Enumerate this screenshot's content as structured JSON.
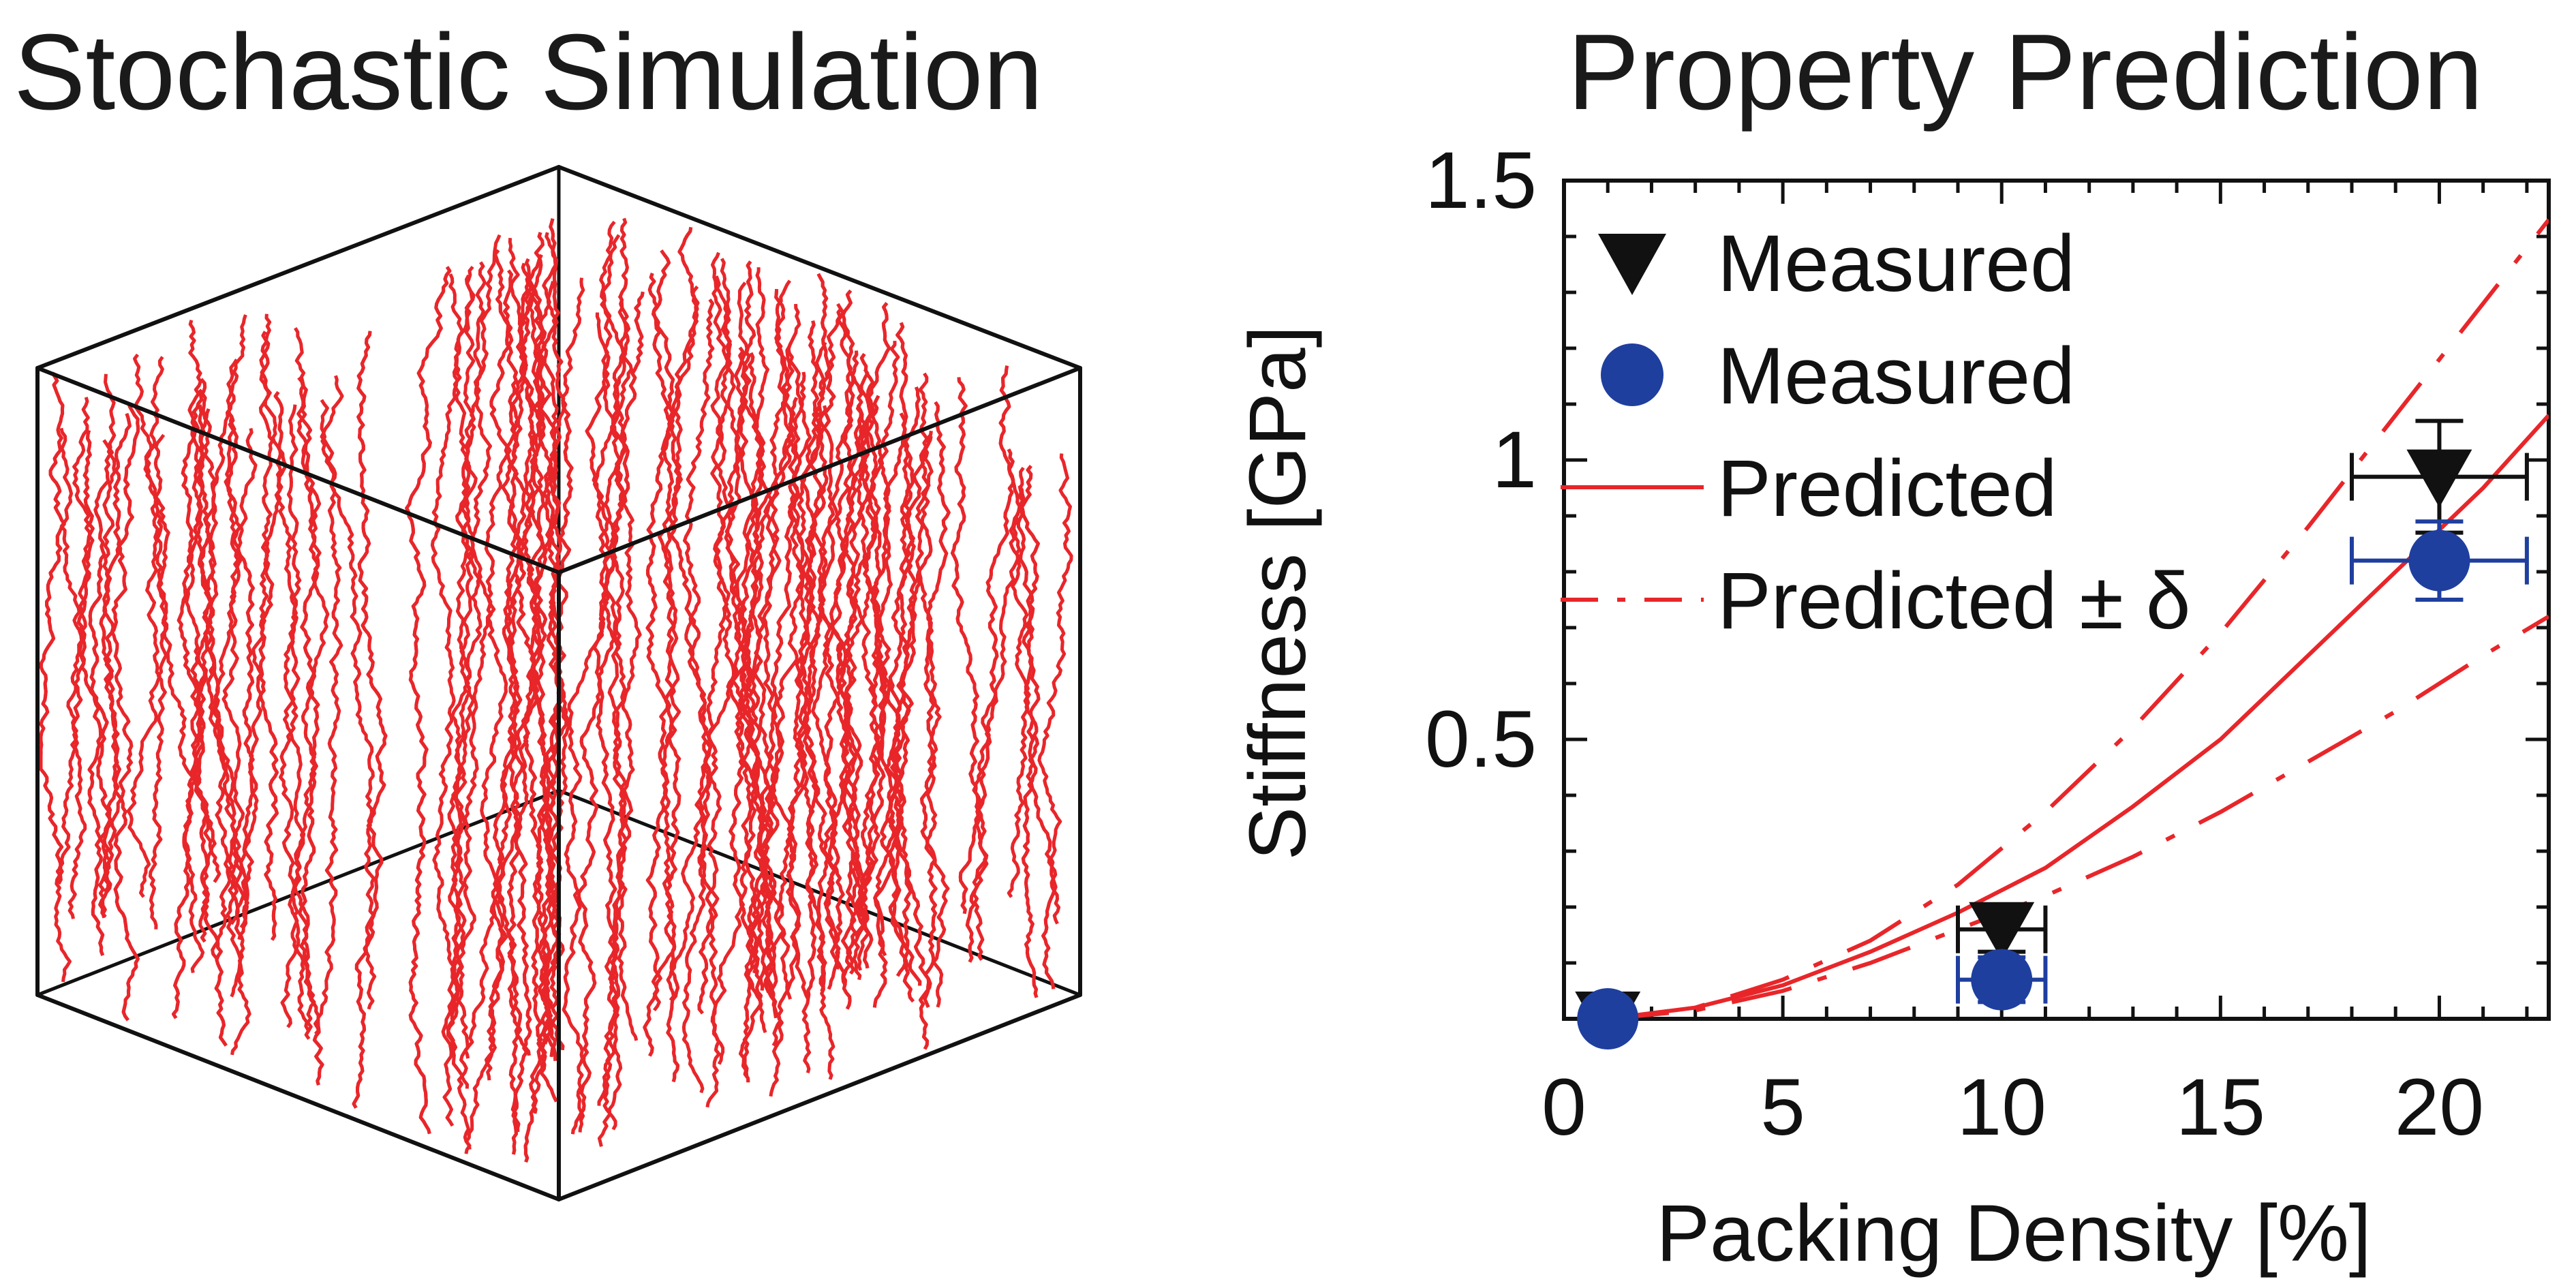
{
  "left_panel": {
    "title": "Stochastic Simulation",
    "fiber_color": "#e8262a",
    "edge_color": "#111111"
  },
  "chart_data": {
    "type": "line",
    "title": "Property Prediction",
    "xlabel": "Packing Density [%]",
    "ylabel": "Stiffness [GPa]",
    "xlim": [
      0,
      22.5
    ],
    "ylim": [
      0,
      1.5
    ],
    "x_ticks": [
      "0",
      "5",
      "10",
      "15",
      "20"
    ],
    "x_tick_values": [
      0,
      5,
      10,
      15,
      20
    ],
    "y_ticks": [
      "0.5",
      "1",
      "1.5"
    ],
    "y_tick_values": [
      0.5,
      1,
      1.5
    ],
    "grid": false,
    "legend_position": "top-left",
    "legend": [
      {
        "label": "Measured",
        "marker": "down-triangle",
        "color": "#111111"
      },
      {
        "label": "Measured",
        "marker": "circle",
        "color": "#1f3f9e"
      },
      {
        "label": "Predicted",
        "marker": "solid-line",
        "color": "#e8262a"
      },
      {
        "label": "Predicted ± δ",
        "marker": "dash-dot-line",
        "color": "#e8262a"
      }
    ],
    "series": [
      {
        "name": "Measured",
        "marker": "down-triangle",
        "color": "#111111",
        "x": [
          1,
          10,
          20
        ],
        "y": [
          0.0,
          0.16,
          0.97
        ],
        "xerr": [
          0,
          1,
          2
        ],
        "yerr": [
          0.03,
          0.04,
          0.1
        ]
      },
      {
        "name": "Measured",
        "marker": "circle",
        "color": "#1f3f9e",
        "x": [
          1,
          10,
          20
        ],
        "y": [
          0.0,
          0.07,
          0.82
        ],
        "xerr": [
          0,
          1,
          2
        ],
        "yerr": [
          0.03,
          0.04,
          0.07
        ]
      },
      {
        "name": "Predicted",
        "style": "solid",
        "color": "#e8262a",
        "x": [
          1,
          3,
          5,
          7,
          9,
          11,
          13,
          15,
          17,
          19,
          21,
          22.5
        ],
        "y": [
          0.0,
          0.02,
          0.06,
          0.12,
          0.19,
          0.27,
          0.38,
          0.5,
          0.65,
          0.8,
          0.95,
          1.08
        ]
      },
      {
        "name": "Predicted ± δ",
        "style": "dash-dot",
        "color": "#e8262a",
        "x": [
          1,
          3,
          5,
          7,
          9,
          11,
          13,
          15,
          17,
          19,
          21,
          22.5
        ],
        "y": [
          0.0,
          0.02,
          0.07,
          0.14,
          0.24,
          0.37,
          0.52,
          0.69,
          0.88,
          1.08,
          1.28,
          1.43
        ]
      },
      {
        "name": "Predicted ± δ",
        "style": "dash-dot",
        "color": "#e8262a",
        "x": [
          1,
          3,
          5,
          7,
          9,
          11,
          13,
          15,
          17,
          19,
          21,
          22.5
        ],
        "y": [
          0.0,
          0.015,
          0.05,
          0.1,
          0.16,
          0.22,
          0.29,
          0.37,
          0.46,
          0.55,
          0.65,
          0.72
        ]
      }
    ]
  }
}
